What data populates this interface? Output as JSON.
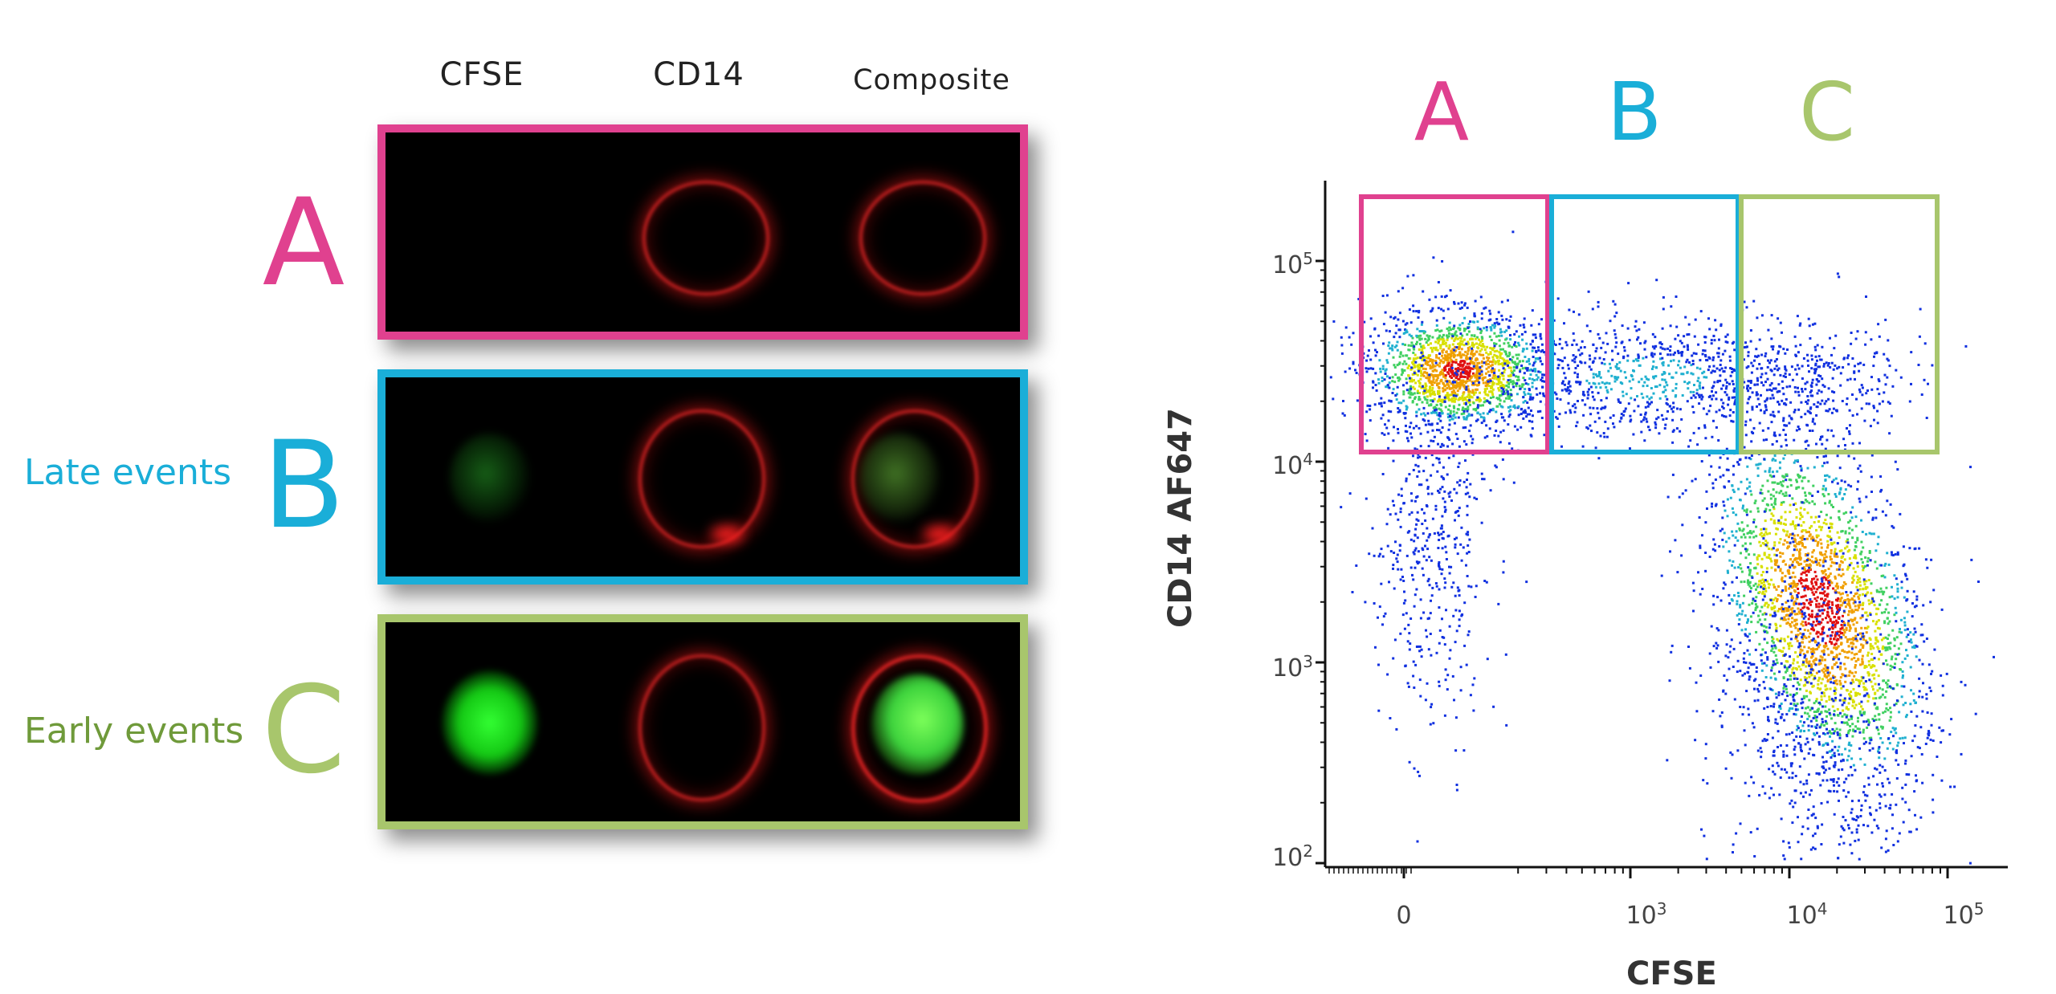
{
  "column_headers": [
    "CFSE",
    "CD14",
    "Composite"
  ],
  "rows": [
    {
      "letter": "A",
      "color": "#e0418f",
      "side_label": ""
    },
    {
      "letter": "B",
      "color": "#1aaed8",
      "side_label": "Late events"
    },
    {
      "letter": "C",
      "color": "#a8c66c",
      "side_label": "Early events"
    }
  ],
  "side_label_colors": {
    "late": "#1aaed8",
    "early": "#6f9a3a"
  },
  "plot": {
    "gates": [
      {
        "letter": "A",
        "color": "#e0418f"
      },
      {
        "letter": "B",
        "color": "#1aaed8"
      },
      {
        "letter": "C",
        "color": "#a8c66c"
      }
    ],
    "x_axis_title": "CFSE",
    "y_axis_title": "CD14 AF647",
    "y_ticks": [
      {
        "base": "10",
        "exp": "5"
      },
      {
        "base": "10",
        "exp": "4"
      },
      {
        "base": "10",
        "exp": "3"
      },
      {
        "base": "10",
        "exp": "2"
      }
    ],
    "x_ticks": [
      {
        "base": "0",
        "exp": ""
      },
      {
        "base": "10",
        "exp": "3"
      },
      {
        "base": "10",
        "exp": "4"
      },
      {
        "base": "10",
        "exp": "5"
      }
    ]
  }
}
